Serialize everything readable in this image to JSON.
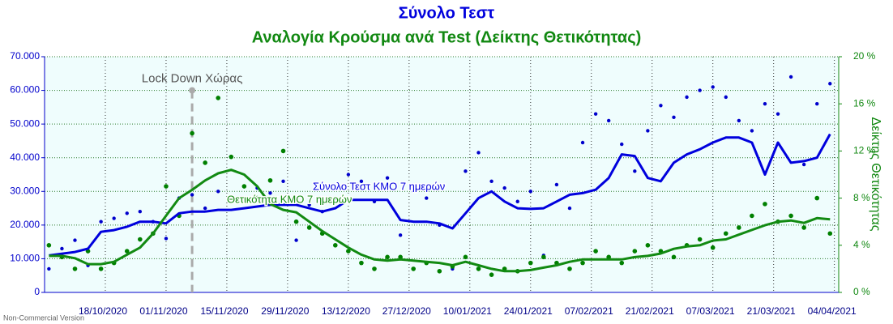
{
  "chart_data": {
    "type": "combo",
    "title": "Σύνολο Τεστ",
    "subtitle": "Αναλογία Κρούσμα ανά Test (Δείκτης Θετικότητας)",
    "y2_label": "Δείκτης Θετικότητας",
    "footer": "Non-Commercial Version",
    "annotation": {
      "text": "Lock Down Χώρας",
      "x": "2020-11-07",
      "y": 60000
    },
    "grid": true,
    "xlim": [
      "2020-10-04",
      "2021-04-05"
    ],
    "xticks": [
      {
        "value": "2020-10-18",
        "label": "18/10/2020"
      },
      {
        "value": "2020-11-01",
        "label": "01/11/2020"
      },
      {
        "value": "2020-11-15",
        "label": "15/11/2020"
      },
      {
        "value": "2020-11-29",
        "label": "29/11/2020"
      },
      {
        "value": "2020-12-13",
        "label": "13/12/2020"
      },
      {
        "value": "2020-12-27",
        "label": "27/12/2020"
      },
      {
        "value": "2021-01-10",
        "label": "10/01/2021"
      },
      {
        "value": "2021-01-24",
        "label": "24/01/2021"
      },
      {
        "value": "2021-02-07",
        "label": "07/02/2021"
      },
      {
        "value": "2021-02-21",
        "label": "21/02/2021"
      },
      {
        "value": "2021-03-07",
        "label": "07/03/2021"
      },
      {
        "value": "2021-03-21",
        "label": "21/03/2021"
      },
      {
        "value": "2021-04-04",
        "label": "04/04/2021"
      }
    ],
    "ylim": [
      0,
      70000
    ],
    "yticks": [
      0,
      {
        "value": 10000,
        "label": "10.000"
      },
      {
        "value": 20000,
        "label": "20.000"
      },
      {
        "value": 30000,
        "label": "30.000"
      },
      {
        "value": 40000,
        "label": "40.000"
      },
      {
        "value": 50000,
        "label": "50.000"
      },
      {
        "value": 60000,
        "label": "60.000"
      },
      {
        "value": 70000,
        "label": "70.000"
      }
    ],
    "y2lim": [
      0,
      20
    ],
    "y2ticks": [
      {
        "value": 0,
        "label": "0 %"
      },
      {
        "value": 4,
        "label": "4 %"
      },
      {
        "value": 8,
        "label": "8 %"
      },
      {
        "value": 12,
        "label": "12 %"
      },
      {
        "value": 16,
        "label": "16 %"
      },
      {
        "value": 20,
        "label": "20 %"
      }
    ],
    "x": [
      "2020-10-05",
      "2020-10-08",
      "2020-10-11",
      "2020-10-14",
      "2020-10-17",
      "2020-10-20",
      "2020-10-23",
      "2020-10-26",
      "2020-10-29",
      "2020-11-01",
      "2020-11-04",
      "2020-11-07",
      "2020-11-10",
      "2020-11-13",
      "2020-11-16",
      "2020-11-19",
      "2020-11-22",
      "2020-11-25",
      "2020-11-28",
      "2020-12-01",
      "2020-12-04",
      "2020-12-07",
      "2020-12-10",
      "2020-12-13",
      "2020-12-16",
      "2020-12-19",
      "2020-12-22",
      "2020-12-25",
      "2020-12-28",
      "2020-12-31",
      "2021-01-03",
      "2021-01-06",
      "2021-01-09",
      "2021-01-12",
      "2021-01-15",
      "2021-01-18",
      "2021-01-21",
      "2021-01-24",
      "2021-01-27",
      "2021-01-30",
      "2021-02-02",
      "2021-02-05",
      "2021-02-08",
      "2021-02-11",
      "2021-02-14",
      "2021-02-17",
      "2021-02-20",
      "2021-02-23",
      "2021-02-26",
      "2021-03-01",
      "2021-03-04",
      "2021-03-07",
      "2021-03-10",
      "2021-03-13",
      "2021-03-16",
      "2021-03-19",
      "2021-03-22",
      "2021-03-25",
      "2021-03-28",
      "2021-03-31",
      "2021-04-03"
    ],
    "series": [
      {
        "type": "scatter",
        "color": "#0000cc",
        "values": [
          7000,
          13000,
          15500,
          8000,
          21000,
          22000,
          23500,
          24000,
          21000,
          16000,
          28000,
          29000,
          25000,
          30000,
          28000,
          27500,
          31000,
          29500,
          33000,
          15500,
          26000,
          24000,
          28000,
          35000,
          33000,
          27000,
          34000,
          17000,
          30000,
          28000,
          20000,
          7000,
          36000,
          41500,
          33000,
          31000,
          27000,
          30000,
          11000,
          32000,
          25000,
          44500,
          53000,
          51000,
          44000,
          36000,
          48000,
          55500,
          52000,
          58000,
          60000,
          61000,
          58000,
          51000,
          48000,
          56000,
          53000,
          64000,
          38000,
          56000,
          62000
        ]
      },
      {
        "type": "scatter",
        "axis": "y2",
        "color": "#008000",
        "values": [
          4.0,
          3.0,
          2.0,
          3.5,
          2.0,
          2.5,
          3.5,
          4.5,
          5.0,
          9.0,
          6.5,
          13.5,
          11.0,
          16.5,
          11.5,
          9.0,
          8.0,
          9.5,
          12.0,
          6.0,
          5.5,
          5.0,
          4.0,
          3.5,
          2.5,
          2.0,
          3.0,
          3.0,
          2.0,
          2.5,
          1.8,
          2.2,
          3.0,
          2.0,
          1.5,
          2.0,
          1.8,
          2.5,
          3.0,
          2.5,
          2.0,
          2.5,
          3.5,
          3.0,
          2.5,
          3.5,
          4.0,
          3.5,
          3.0,
          4.0,
          4.5,
          3.8,
          5.0,
          5.5,
          6.5,
          7.5,
          6.0,
          6.5,
          5.5,
          8.0,
          5.0
        ]
      },
      {
        "type": "line",
        "name": "Σύνολο Τεστ ΚΜΟ 7 ημερών",
        "color": "#0000dd",
        "values": [
          11000,
          11500,
          12000,
          13000,
          18000,
          18500,
          19500,
          21000,
          21000,
          20500,
          23500,
          24000,
          24000,
          24500,
          24500,
          25000,
          25500,
          26000,
          26000,
          26000,
          25000,
          24000,
          25000,
          27500,
          27500,
          27500,
          27500,
          21500,
          21000,
          21000,
          20500,
          19000,
          23500,
          28000,
          30000,
          27000,
          25000,
          24800,
          25000,
          27000,
          29000,
          29500,
          30500,
          34000,
          41000,
          40500,
          34000,
          33000,
          38500,
          41000,
          42500,
          44500,
          46000,
          46000,
          44500,
          35000,
          44500,
          38500,
          39000,
          40000,
          47000
        ]
      },
      {
        "type": "line",
        "axis": "y2",
        "name": "Θετικότητα ΚΜΟ 7 ημερών",
        "color": "#128a12",
        "values": [
          3.1,
          3.1,
          2.9,
          2.4,
          2.4,
          2.6,
          3.2,
          3.8,
          5.0,
          6.5,
          8.0,
          8.7,
          9.5,
          10.1,
          10.4,
          10.0,
          9.0,
          7.5,
          7.0,
          6.8,
          6.0,
          5.2,
          4.5,
          3.8,
          3.2,
          2.8,
          2.7,
          2.8,
          2.7,
          2.6,
          2.5,
          2.3,
          2.6,
          2.3,
          2.0,
          1.8,
          1.8,
          1.9,
          2.1,
          2.3,
          2.6,
          2.8,
          2.8,
          2.8,
          2.8,
          3.0,
          3.1,
          3.3,
          3.7,
          3.9,
          4.0,
          4.4,
          4.5,
          4.9,
          5.3,
          5.7,
          6.0,
          6.1,
          5.9,
          6.3,
          6.2
        ]
      }
    ]
  }
}
